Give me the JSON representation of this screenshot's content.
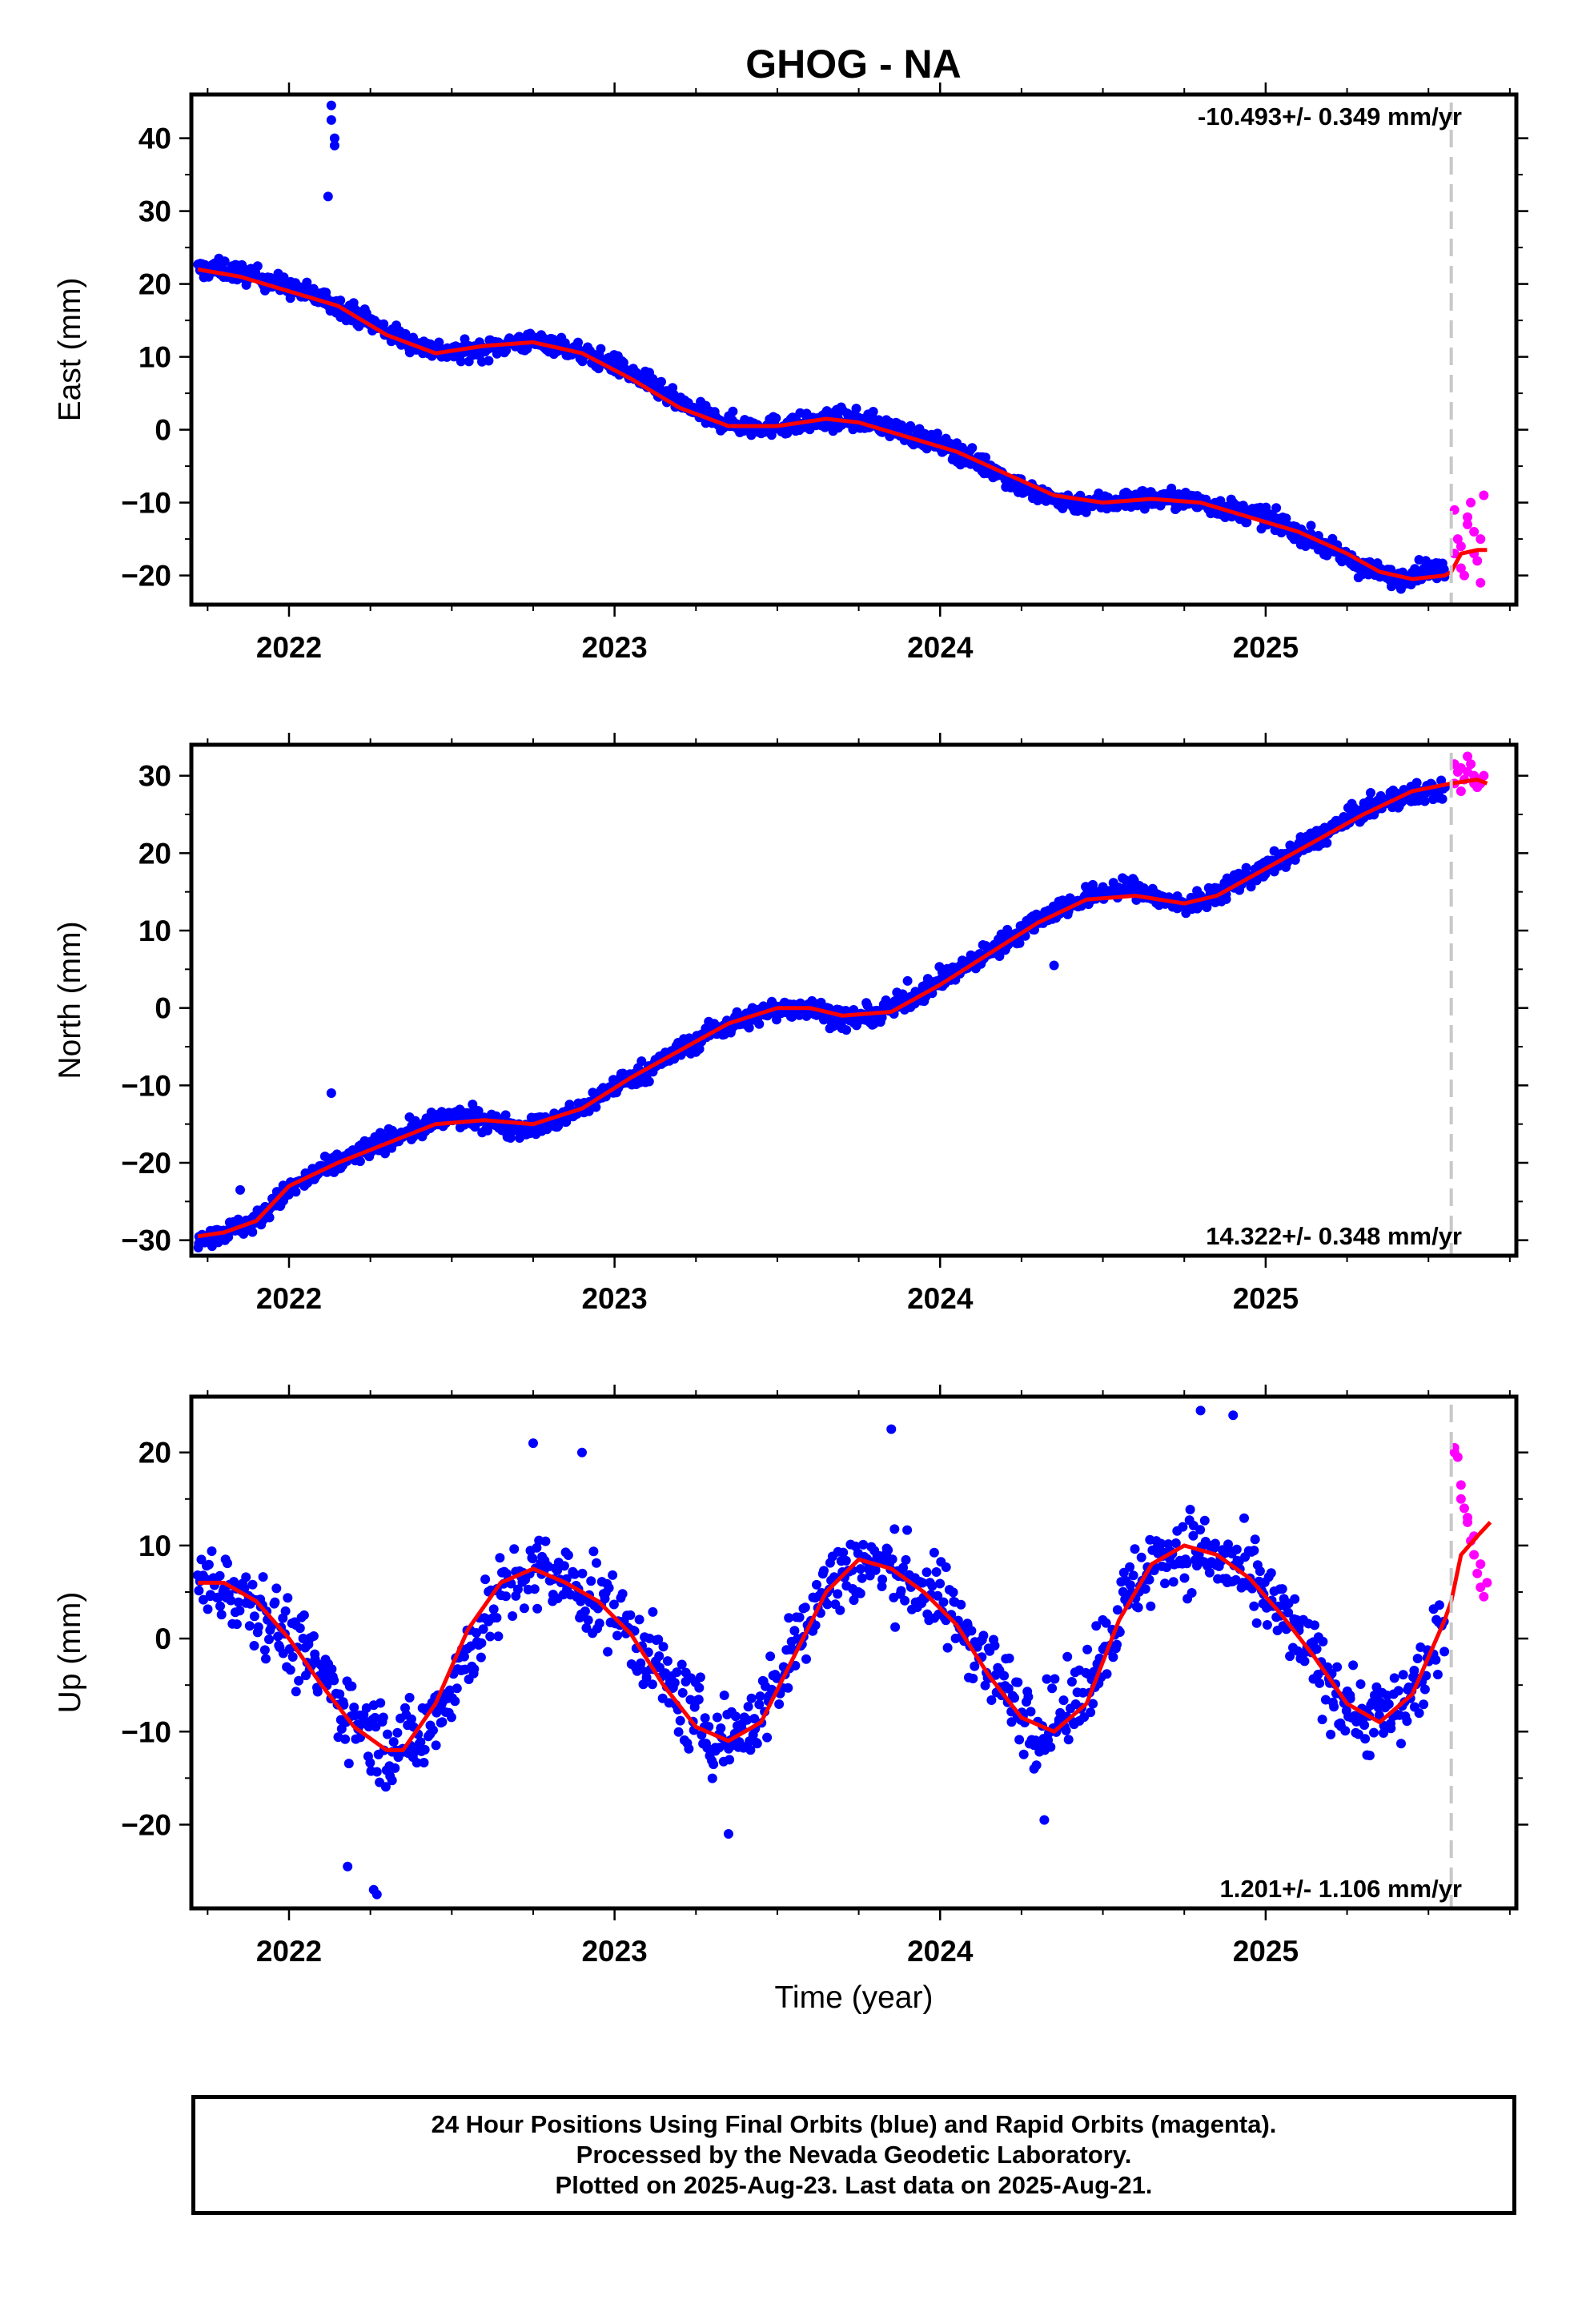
{
  "title": "GHOG - NA",
  "colors": {
    "final": "#0000ff",
    "rapid": "#ff00ff",
    "model": "#ff0000",
    "marker": "#c8c8c8"
  },
  "chart_data": [
    {
      "type": "scatter",
      "component": "east",
      "ylabel": "East (mm)",
      "xlabel": "",
      "rate_text": "-10.493+/- 0.349 mm/yr",
      "rate_position": "top-right",
      "ylim": [
        -24,
        46
      ],
      "xlim": [
        2021.7,
        2025.77
      ],
      "yticks": [
        -20,
        -10,
        0,
        10,
        20,
        30,
        40
      ],
      "xticks": [
        2022,
        2023,
        2024,
        2025
      ],
      "xtick_labels": [
        "2022",
        "2023",
        "2024",
        "2025"
      ],
      "last_final_epoch": 2025.57,
      "model_curve": {
        "x": [
          2021.72,
          2021.85,
          2022.0,
          2022.15,
          2022.3,
          2022.45,
          2022.6,
          2022.75,
          2022.9,
          2023.05,
          2023.2,
          2023.35,
          2023.5,
          2023.65,
          2023.75,
          2023.9,
          2024.05,
          2024.2,
          2024.35,
          2024.5,
          2024.65,
          2024.8,
          2024.95,
          2025.1,
          2025.25,
          2025.35,
          2025.45,
          2025.55,
          2025.57,
          2025.6,
          2025.65,
          2025.68
        ],
        "y": [
          22,
          21,
          19,
          17,
          13,
          10.5,
          11.5,
          12,
          10.5,
          7,
          3,
          0.5,
          0.5,
          1.5,
          1,
          -1,
          -3,
          -6,
          -9,
          -10,
          -9.5,
          -10,
          -12,
          -14,
          -17,
          -19.5,
          -20.5,
          -20,
          -19.5,
          -17,
          -16.5,
          -16.5
        ]
      },
      "final_series": {
        "x": [
          2021.72,
          2021.8,
          2021.9,
          2022.0,
          2022.1,
          2022.2,
          2022.3,
          2022.4,
          2022.5,
          2022.6,
          2022.7,
          2022.8,
          2022.9,
          2023.0,
          2023.1,
          2023.2,
          2023.3,
          2023.4,
          2023.5,
          2023.6,
          2023.7,
          2023.8,
          2023.9,
          2024.0,
          2024.1,
          2024.2,
          2024.3,
          2024.4,
          2024.5,
          2024.6,
          2024.7,
          2024.8,
          2024.9,
          2025.0,
          2025.1,
          2025.2,
          2025.3,
          2025.4,
          2025.5,
          2025.55
        ],
        "y": [
          22,
          22,
          21,
          19.5,
          18,
          16,
          13.5,
          11.5,
          10.5,
          11,
          12,
          12,
          10.5,
          9,
          6.5,
          3.5,
          1.5,
          0.5,
          0.5,
          1,
          1.5,
          1,
          -0.5,
          -2,
          -4,
          -6.5,
          -9,
          -10,
          -10,
          -9.5,
          -9.5,
          -10,
          -11,
          -12,
          -14,
          -16.5,
          -19,
          -20.5,
          -19,
          -19.5
        ],
        "noise": 1.3,
        "count": 1350
      },
      "outliers": {
        "x": [
          2022.13,
          2022.13,
          2022.14,
          2022.14,
          2022.12
        ],
        "y": [
          44.5,
          42.5,
          40,
          39,
          32
        ]
      },
      "rapid_series": {
        "x": [
          2025.58,
          2025.59,
          2025.6,
          2025.61,
          2025.62,
          2025.63,
          2025.64,
          2025.65,
          2025.66,
          2025.67,
          2025.6,
          2025.62,
          2025.64,
          2025.58,
          2025.66
        ],
        "y": [
          -11,
          -15,
          -19,
          -20,
          -12,
          -10,
          -14,
          -18,
          -21,
          -9,
          -16,
          -13,
          -17,
          -17,
          -15
        ]
      }
    },
    {
      "type": "scatter",
      "component": "north",
      "ylabel": "North (mm)",
      "xlabel": "",
      "rate_text": "14.322+/- 0.348 mm/yr",
      "rate_position": "bottom-right",
      "ylim": [
        -32,
        34
      ],
      "xlim": [
        2021.7,
        2025.77
      ],
      "yticks": [
        -30,
        -20,
        -10,
        0,
        10,
        20,
        30
      ],
      "xticks": [
        2022,
        2023,
        2024,
        2025
      ],
      "xtick_labels": [
        "2022",
        "2023",
        "2024",
        "2025"
      ],
      "last_final_epoch": 2025.57,
      "model_curve": {
        "x": [
          2021.72,
          2021.8,
          2021.9,
          2022.0,
          2022.15,
          2022.3,
          2022.45,
          2022.6,
          2022.75,
          2022.9,
          2023.05,
          2023.2,
          2023.35,
          2023.5,
          2023.6,
          2023.7,
          2023.85,
          2024.0,
          2024.15,
          2024.3,
          2024.45,
          2024.6,
          2024.75,
          2024.85,
          2025.0,
          2025.15,
          2025.3,
          2025.45,
          2025.57,
          2025.65,
          2025.68
        ],
        "y": [
          -29.5,
          -29,
          -27.5,
          -23,
          -20,
          -17.5,
          -15,
          -14.5,
          -15,
          -13,
          -9,
          -5.5,
          -2,
          0,
          0,
          -1,
          -0.5,
          3,
          7,
          11,
          14,
          14.5,
          13.5,
          14.5,
          18,
          21.5,
          25,
          28,
          29,
          29.5,
          29
        ]
      },
      "final_series": {
        "x": [
          2021.72,
          2021.8,
          2021.9,
          2022.0,
          2022.1,
          2022.2,
          2022.3,
          2022.4,
          2022.5,
          2022.6,
          2022.7,
          2022.8,
          2022.9,
          2023.0,
          2023.1,
          2023.2,
          2023.3,
          2023.4,
          2023.5,
          2023.6,
          2023.7,
          2023.8,
          2023.9,
          2024.0,
          2024.1,
          2024.2,
          2024.3,
          2024.4,
          2024.5,
          2024.6,
          2024.7,
          2024.8,
          2024.9,
          2025.0,
          2025.1,
          2025.2,
          2025.3,
          2025.4,
          2025.5,
          2025.55
        ],
        "y": [
          -29.5,
          -29,
          -27.5,
          -23.5,
          -21,
          -19,
          -17,
          -15.5,
          -14,
          -14.5,
          -15.5,
          -15,
          -13,
          -10,
          -8,
          -5.5,
          -3,
          -1.5,
          0,
          0,
          -1.5,
          -1,
          1,
          3.5,
          6,
          8.5,
          11.5,
          13.5,
          15,
          15.5,
          13.5,
          13.5,
          16,
          18,
          20.5,
          23,
          25.5,
          27,
          28,
          28
        ],
        "noise": 1.3,
        "count": 1350
      },
      "outliers": {
        "x": [
          2022.13,
          2021.85,
          2023.9,
          2024.35
        ],
        "y": [
          -11,
          -23.5,
          3.5,
          5.5
        ]
      },
      "rapid_series": {
        "x": [
          2025.58,
          2025.59,
          2025.6,
          2025.61,
          2025.62,
          2025.63,
          2025.64,
          2025.65,
          2025.66,
          2025.67,
          2025.6,
          2025.62,
          2025.64,
          2025.58,
          2025.66
        ],
        "y": [
          29,
          30.5,
          31,
          29.5,
          32.5,
          31.5,
          30,
          28.5,
          29,
          30,
          28,
          30.5,
          29,
          31.5,
          29.5
        ]
      }
    },
    {
      "type": "scatter",
      "component": "up",
      "ylabel": "Up (mm)",
      "xlabel": "Time (year)",
      "rate_text": "1.201+/- 1.106 mm/yr",
      "rate_position": "bottom-right",
      "ylim": [
        -29,
        26
      ],
      "xlim": [
        2021.7,
        2025.77
      ],
      "yticks": [
        -20,
        -10,
        0,
        10,
        20
      ],
      "xticks": [
        2022,
        2023,
        2024,
        2025
      ],
      "xtick_labels": [
        "2022",
        "2023",
        "2024",
        "2025"
      ],
      "last_final_epoch": 2025.57,
      "model_curve": {
        "x": [
          2021.72,
          2021.8,
          2021.9,
          2022.0,
          2022.1,
          2022.2,
          2022.3,
          2022.35,
          2022.45,
          2022.55,
          2022.65,
          2022.75,
          2022.85,
          2022.95,
          2023.05,
          2023.15,
          2023.25,
          2023.35,
          2023.45,
          2023.55,
          2023.65,
          2023.75,
          2023.85,
          2023.95,
          2024.05,
          2024.15,
          2024.25,
          2024.35,
          2024.45,
          2024.55,
          2024.65,
          2024.75,
          2024.85,
          2024.95,
          2025.05,
          2025.15,
          2025.25,
          2025.35,
          2025.45,
          2025.55,
          2025.57,
          2025.6,
          2025.65,
          2025.69
        ],
        "y": [
          6,
          6,
          4,
          0,
          -5,
          -9.5,
          -12,
          -12,
          -7,
          1,
          6,
          7.5,
          6,
          4,
          0.5,
          -5,
          -9.5,
          -11,
          -9,
          -2,
          5,
          8.5,
          7.5,
          5,
          1.5,
          -4,
          -8.5,
          -10,
          -7,
          2,
          8,
          10,
          9,
          6.5,
          2.5,
          -2,
          -7,
          -9,
          -6,
          2,
          4,
          9,
          11,
          12.5
        ]
      },
      "final_series": {
        "x": [
          2021.72,
          2021.8,
          2021.9,
          2022.0,
          2022.1,
          2022.2,
          2022.3,
          2022.4,
          2022.5,
          2022.6,
          2022.7,
          2022.8,
          2022.9,
          2023.0,
          2023.1,
          2023.2,
          2023.3,
          2023.4,
          2023.5,
          2023.6,
          2023.7,
          2023.8,
          2023.9,
          2024.0,
          2024.1,
          2024.2,
          2024.3,
          2024.4,
          2024.5,
          2024.6,
          2024.7,
          2024.8,
          2024.9,
          2025.0,
          2025.1,
          2025.2,
          2025.3,
          2025.4,
          2025.5,
          2025.55
        ],
        "y": [
          6,
          6,
          4,
          0,
          -4,
          -8.5,
          -11.5,
          -11,
          -5,
          2,
          6.5,
          7,
          5,
          3,
          -1.5,
          -6.5,
          -10.5,
          -10,
          -5,
          3,
          7.5,
          8,
          6.5,
          4,
          0,
          -5.5,
          -9.5,
          -8,
          -1,
          6,
          9.5,
          9.5,
          7.5,
          4.5,
          0,
          -5,
          -8.5,
          -8,
          -3,
          1
        ],
        "noise": 4.2,
        "count": 1050
      },
      "outliers": {
        "x": [
          2022.26,
          2022.27,
          2022.18,
          2022.75,
          2022.9,
          2023.35,
          2023.85,
          2024.32,
          2024.8,
          2024.9
        ],
        "y": [
          -27,
          -27.5,
          -24.5,
          21,
          20,
          -21,
          22.5,
          -19.5,
          24.5,
          24
        ]
      },
      "rapid_series": {
        "x": [
          2025.58,
          2025.59,
          2025.6,
          2025.61,
          2025.62,
          2025.63,
          2025.64,
          2025.65,
          2025.66,
          2025.67,
          2025.6,
          2025.62,
          2025.64,
          2025.58,
          2025.66,
          2025.68
        ],
        "y": [
          20.5,
          19.5,
          16.5,
          14,
          12.5,
          10.5,
          9,
          7,
          5.5,
          4.5,
          15,
          13,
          11,
          20,
          8,
          6
        ]
      }
    }
  ],
  "footer": {
    "line1": "24 Hour Positions Using Final Orbits (blue) and Rapid Orbits (magenta).",
    "line2": "Processed by the Nevada Geodetic Laboratory.",
    "line3": "Plotted on 2025-Aug-23. Last data on 2025-Aug-21."
  }
}
